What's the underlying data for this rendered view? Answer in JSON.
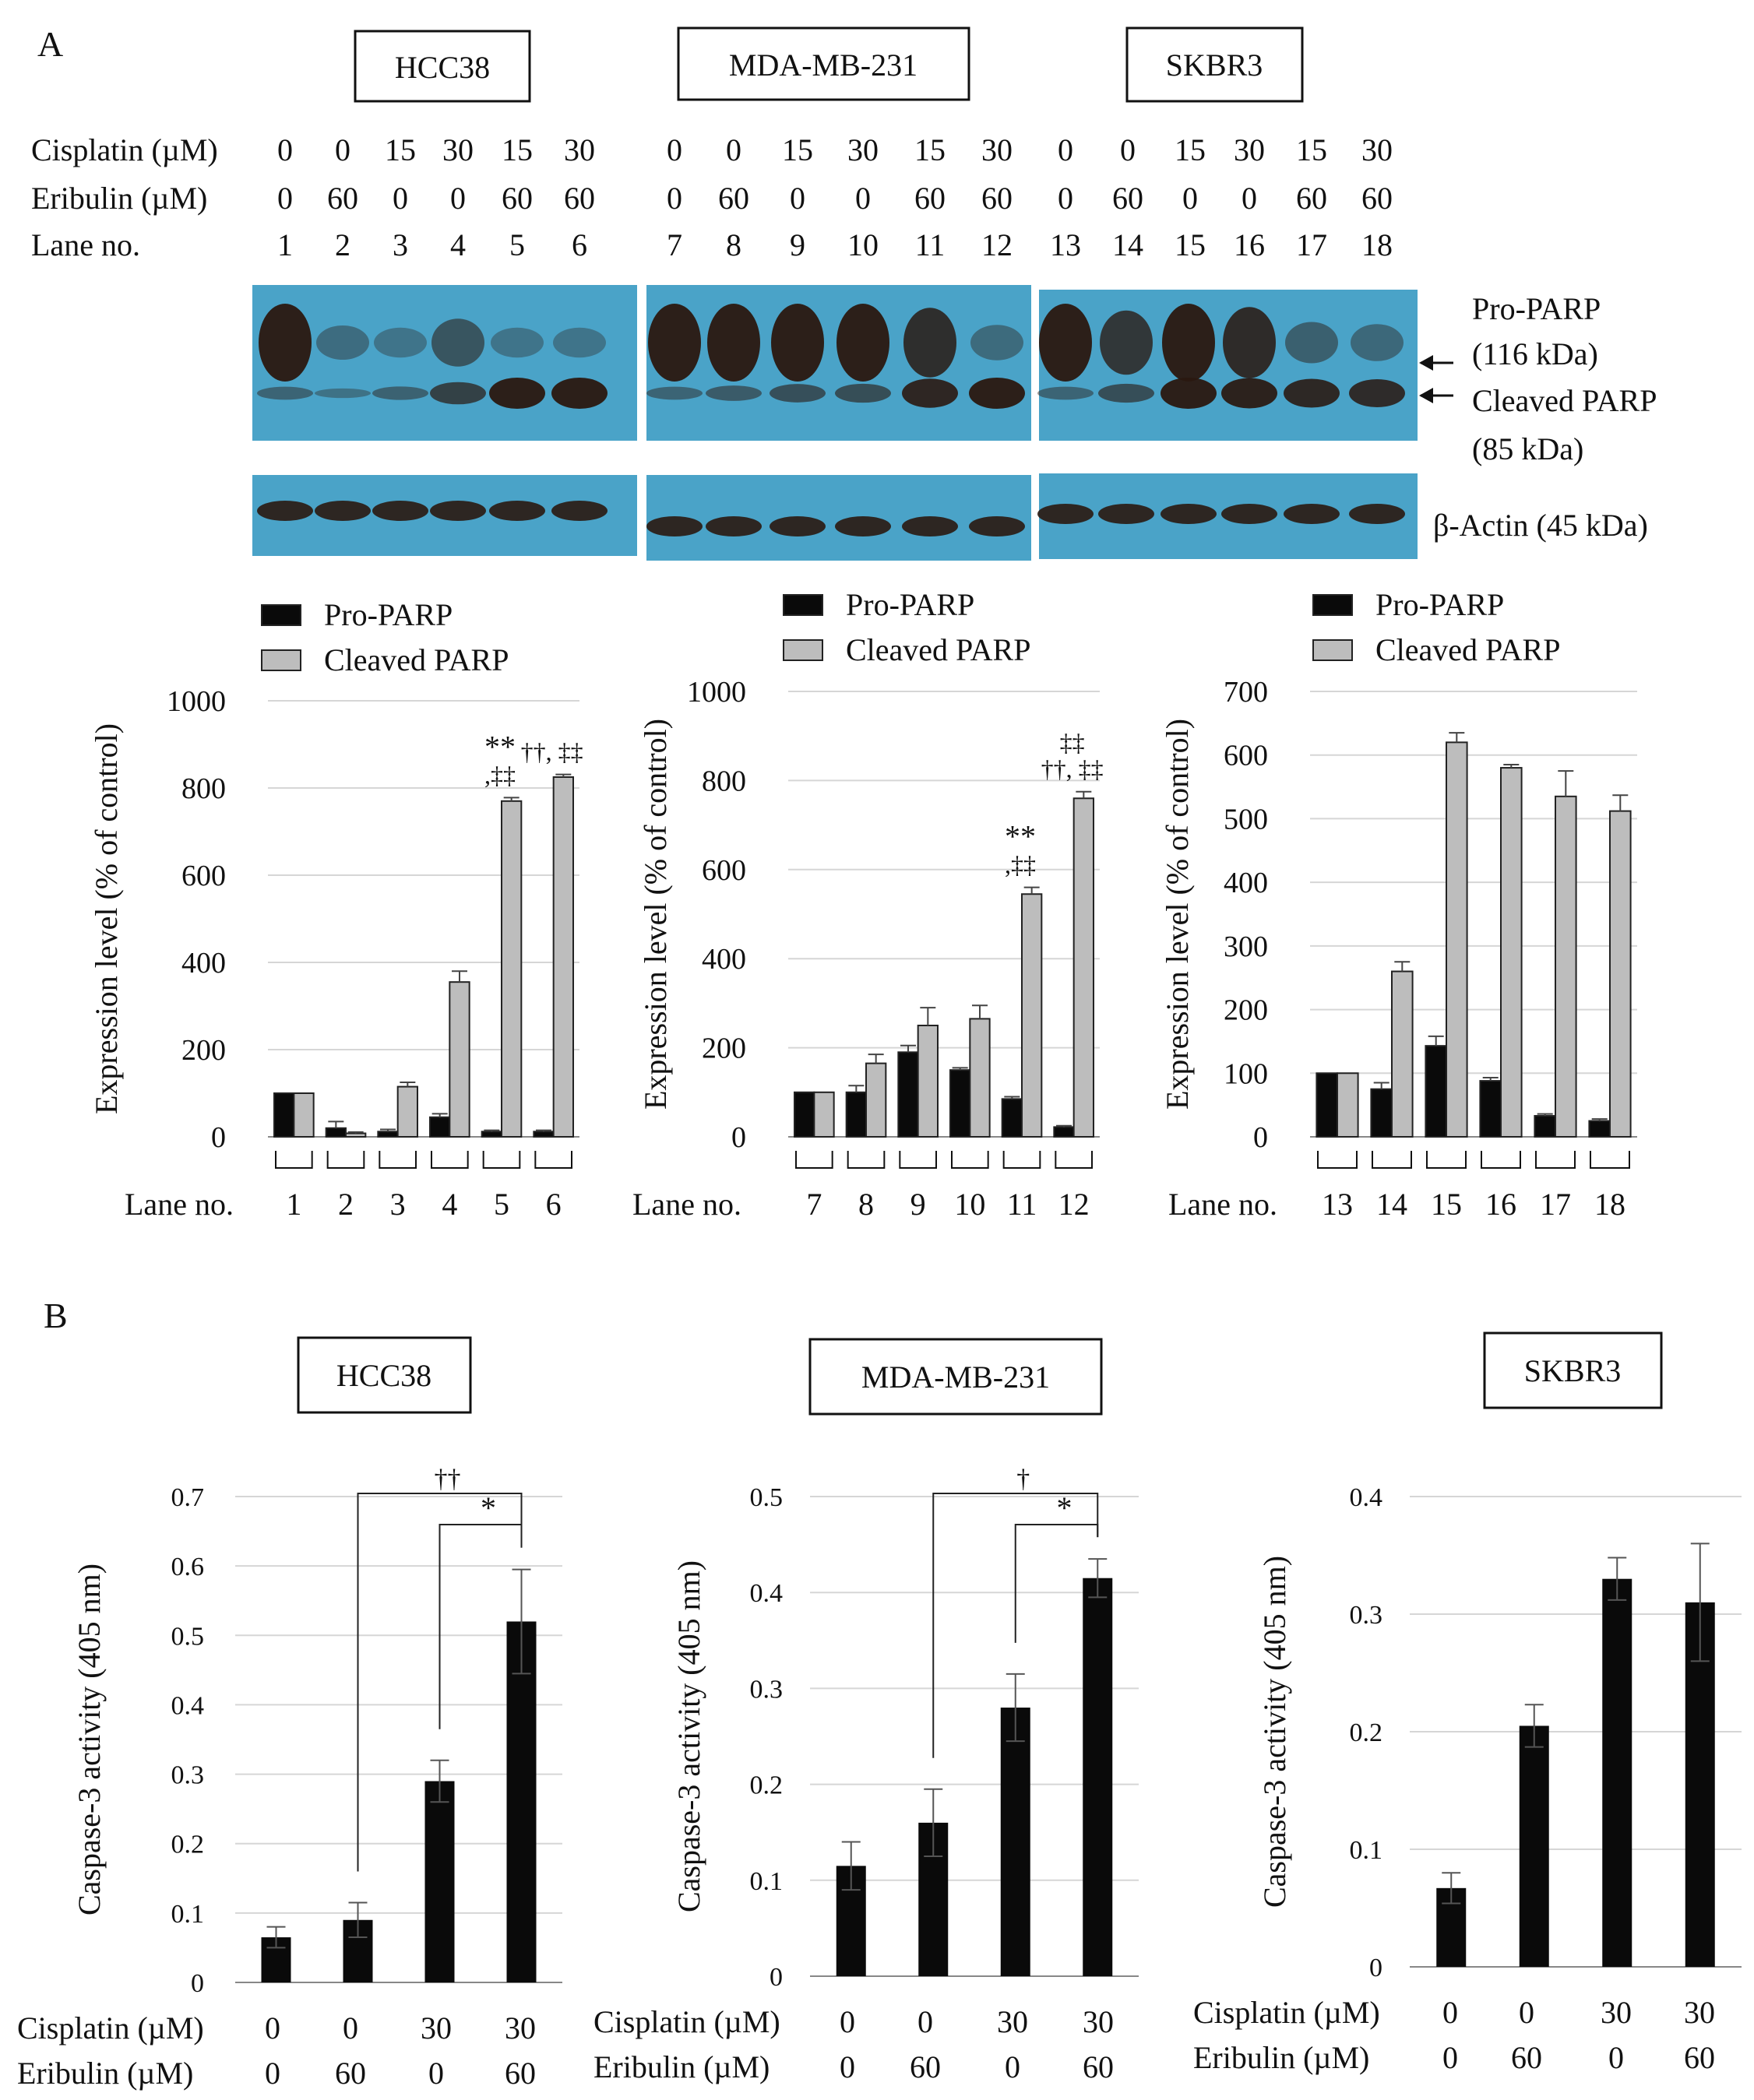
{
  "panel_a": {
    "label": "A",
    "cell_lines": [
      "HCC38",
      "MDA-MB-231",
      "SKBR3"
    ],
    "row_labels": {
      "cisplatin": "Cisplatin (µM)",
      "eribulin": "Eribulin (µM)",
      "lane": "Lane no."
    },
    "cisplatin_values": [
      "0",
      "0",
      "15",
      "30",
      "15",
      "30",
      "0",
      "0",
      "15",
      "30",
      "15",
      "30",
      "0",
      "0",
      "15",
      "30",
      "15",
      "30"
    ],
    "eribulin_values": [
      "0",
      "60",
      "0",
      "0",
      "60",
      "60",
      "0",
      "60",
      "0",
      "0",
      "60",
      "60",
      "0",
      "60",
      "0",
      "0",
      "60",
      "60"
    ],
    "lane_numbers": [
      "1",
      "2",
      "3",
      "4",
      "5",
      "6",
      "7",
      "8",
      "9",
      "10",
      "11",
      "12",
      "13",
      "14",
      "15",
      "16",
      "17",
      "18"
    ],
    "blot_labels": {
      "pro_parp_1": "Pro-PARP",
      "pro_parp_2": "(116 kDa)",
      "cleaved_parp_1": "Cleaved PARP",
      "cleaved_parp_2": "(85 kDa)",
      "actin": "β-Actin (45 kDa)"
    },
    "colors": {
      "blot_bg": "#4aa3c8",
      "band": "#2a1810",
      "pro_bar": "#0a0a0a",
      "cleaved_bar": "#bdbdbd"
    }
  },
  "panel_b": {
    "label": "B",
    "cell_lines": [
      "HCC38",
      "MDA-MB-231",
      "SKBR3"
    ],
    "cisplatin_label": "Cisplatin (µM)",
    "eribulin_label": "Eribulin (µM)",
    "cisplatin_values": [
      "0",
      "0",
      "30",
      "30"
    ],
    "eribulin_values": [
      "0",
      "60",
      "0",
      "60"
    ]
  },
  "chart_data": [
    {
      "type": "bar",
      "panel": "A",
      "cell_line": "HCC38",
      "categories": [
        "1",
        "2",
        "3",
        "4",
        "5",
        "6"
      ],
      "xlabel": "Lane no.",
      "ylabel": "Expression level (% of control)",
      "ylim": [
        0,
        1000
      ],
      "yticks": [
        "0",
        "200",
        "400",
        "600",
        "800",
        "1000"
      ],
      "legend": [
        "Pro-PARP",
        "Cleaved PARP"
      ],
      "series": [
        {
          "name": "Pro-PARP",
          "values": [
            100,
            20,
            12,
            45,
            12,
            12
          ],
          "errors": [
            0,
            15,
            5,
            8,
            3,
            3
          ]
        },
        {
          "name": "Cleaved PARP",
          "values": [
            100,
            8,
            115,
            355,
            770,
            825
          ],
          "errors": [
            0,
            3,
            10,
            25,
            8,
            6
          ]
        }
      ],
      "annotations": [
        {
          "category": "5",
          "lines": [
            "**",
            ",‡‡"
          ]
        },
        {
          "category": "6",
          "lines": [
            "††, ‡‡"
          ]
        }
      ]
    },
    {
      "type": "bar",
      "panel": "A",
      "cell_line": "MDA-MB-231",
      "categories": [
        "7",
        "8",
        "9",
        "10",
        "11",
        "12"
      ],
      "xlabel": "Lane no.",
      "ylabel": "Expression level (% of control)",
      "ylim": [
        0,
        1000
      ],
      "yticks": [
        "0",
        "200",
        "400",
        "600",
        "800",
        "1000"
      ],
      "legend": [
        "Pro-PARP",
        "Cleaved PARP"
      ],
      "series": [
        {
          "name": "Pro-PARP",
          "values": [
            100,
            100,
            190,
            150,
            85,
            22
          ],
          "errors": [
            0,
            15,
            15,
            5,
            5,
            3
          ]
        },
        {
          "name": "Cleaved PARP",
          "values": [
            100,
            165,
            250,
            265,
            545,
            760
          ],
          "errors": [
            0,
            20,
            40,
            30,
            15,
            15
          ]
        }
      ],
      "annotations": [
        {
          "category": "11",
          "lines": [
            "**",
            ",‡‡"
          ]
        },
        {
          "category": "12",
          "lines": [
            "‡‡",
            "††, ‡‡"
          ]
        }
      ]
    },
    {
      "type": "bar",
      "panel": "A",
      "cell_line": "SKBR3",
      "categories": [
        "13",
        "14",
        "15",
        "16",
        "17",
        "18"
      ],
      "xlabel": "Lane no.",
      "ylabel": "Expression level (% of control)",
      "ylim": [
        0,
        700
      ],
      "yticks": [
        "0",
        "100",
        "200",
        "300",
        "400",
        "500",
        "600",
        "700"
      ],
      "legend": [
        "Pro-PARP",
        "Cleaved PARP"
      ],
      "series": [
        {
          "name": "Pro-PARP",
          "values": [
            100,
            75,
            143,
            88,
            33,
            25
          ],
          "errors": [
            0,
            10,
            15,
            5,
            3,
            3
          ]
        },
        {
          "name": "Cleaved PARP",
          "values": [
            100,
            260,
            620,
            580,
            535,
            512
          ],
          "errors": [
            0,
            15,
            15,
            5,
            40,
            25
          ]
        }
      ],
      "annotations": []
    },
    {
      "type": "bar",
      "panel": "B",
      "cell_line": "HCC38",
      "categories": [
        "0/0",
        "0/60",
        "30/0",
        "30/60"
      ],
      "ylabel": "Caspase-3 activity (405 nm)",
      "ylim": [
        0,
        0.7
      ],
      "yticks": [
        "0",
        "0.1",
        "0.2",
        "0.3",
        "0.4",
        "0.5",
        "0.6",
        "0.7"
      ],
      "values": [
        0.065,
        0.09,
        0.29,
        0.52
      ],
      "errors": [
        0.015,
        0.025,
        0.03,
        0.075
      ],
      "significance": [
        {
          "from": 1,
          "to": 3,
          "label": "††"
        },
        {
          "from": 2,
          "to": 3,
          "label": "*"
        }
      ]
    },
    {
      "type": "bar",
      "panel": "B",
      "cell_line": "MDA-MB-231",
      "categories": [
        "0/0",
        "0/60",
        "30/0",
        "30/60"
      ],
      "ylabel": "Caspase-3 activity (405 nm)",
      "ylim": [
        0,
        0.5
      ],
      "yticks": [
        "0",
        "0.1",
        "0.2",
        "0.3",
        "0.4",
        "0.5"
      ],
      "values": [
        0.115,
        0.16,
        0.28,
        0.415
      ],
      "errors": [
        0.025,
        0.035,
        0.035,
        0.02
      ],
      "significance": [
        {
          "from": 1,
          "to": 3,
          "label": "†"
        },
        {
          "from": 2,
          "to": 3,
          "label": "*"
        }
      ]
    },
    {
      "type": "bar",
      "panel": "B",
      "cell_line": "SKBR3",
      "categories": [
        "0/0",
        "0/60",
        "30/0",
        "30/60"
      ],
      "ylabel": "Caspase-3 activity (405 nm)",
      "ylim": [
        0,
        0.4
      ],
      "yticks": [
        "0",
        "0.1",
        "0.2",
        "0.3",
        "0.4"
      ],
      "values": [
        0.067,
        0.205,
        0.33,
        0.31
      ],
      "errors": [
        0.013,
        0.018,
        0.018,
        0.05
      ],
      "significance": []
    }
  ]
}
